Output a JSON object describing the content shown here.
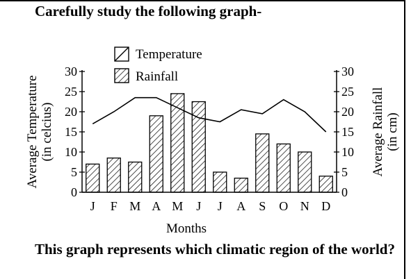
{
  "heading": "Carefully study the following graph-",
  "question": "This graph represents which climatic region of the world?",
  "chart_data": {
    "type": "bar",
    "categories": [
      "J",
      "F",
      "M",
      "A",
      "M",
      "J",
      "J",
      "A",
      "S",
      "O",
      "N",
      "D"
    ],
    "xlabel": "Months",
    "ylabel_left": [
      "Average Temperature",
      "(in celcius)"
    ],
    "ylabel_right": [
      "Average Rainfall",
      "(in cm)"
    ],
    "ylim_left": [
      0,
      30
    ],
    "ylim_right": [
      0,
      30
    ],
    "yticks": [
      0,
      5,
      10,
      15,
      20,
      25,
      30
    ],
    "grid": false,
    "legend_position": "top-left",
    "series": [
      {
        "name": "Temperature",
        "type": "line",
        "axis": "left",
        "values": [
          17,
          20,
          23.5,
          23.5,
          21,
          18.5,
          17.5,
          20.5,
          19.5,
          23,
          20,
          15
        ]
      },
      {
        "name": "Rainfall",
        "type": "bar",
        "axis": "right",
        "values": [
          7,
          8.5,
          7.5,
          19,
          24.5,
          22.5,
          5,
          3.5,
          14.5,
          12,
          10,
          4
        ]
      }
    ]
  }
}
